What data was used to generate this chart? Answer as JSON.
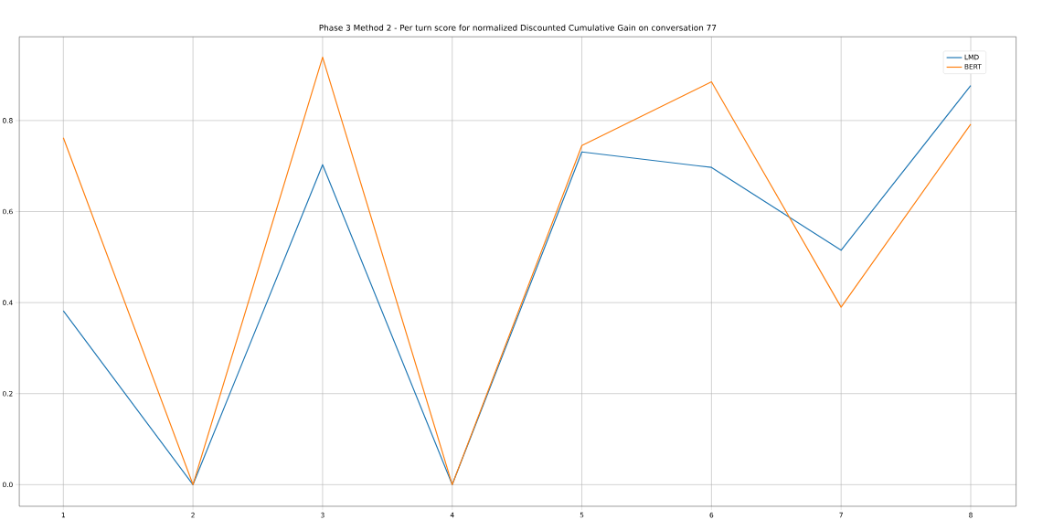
{
  "chart_data": {
    "type": "line",
    "title": "Phase 3 Method 2 - Per turn score for normalized Discounted Cumulative Gain on conversation 77",
    "x": [
      1,
      2,
      3,
      4,
      5,
      6,
      7,
      8
    ],
    "series": [
      {
        "name": "LMD",
        "color": "#1f77b4",
        "values": [
          0.382,
          0,
          0.703,
          0,
          0.731,
          0.697,
          0.515,
          0.877
        ]
      },
      {
        "name": "BERT",
        "color": "#ff7f0e",
        "values": [
          0.762,
          0,
          0.939,
          0,
          0.745,
          0.885,
          0.39,
          0.792
        ]
      }
    ],
    "xlim": [
      0.66,
      8.35
    ],
    "ylim": [
      -0.0475,
      0.984
    ],
    "xticks": [
      1,
      2,
      3,
      4,
      5,
      6,
      7,
      8
    ],
    "yticks": [
      {
        "value": 0,
        "label": "0.0"
      },
      {
        "value": 0.2,
        "label": "0.2"
      },
      {
        "value": 0.4,
        "label": "0.4"
      },
      {
        "value": 0.6,
        "label": "0.6"
      },
      {
        "value": 0.8,
        "label": "0.8"
      }
    ],
    "grid": true,
    "legend": "top right",
    "marker": "none",
    "line_style": "solid"
  }
}
